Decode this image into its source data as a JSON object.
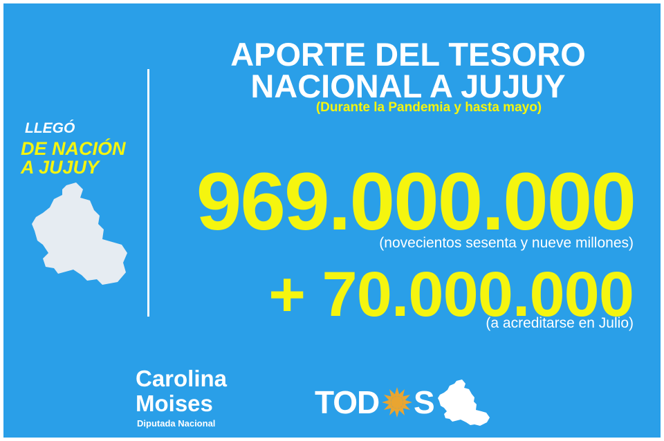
{
  "title": {
    "line1": "APORTE DEL TESORO",
    "line2": "NACIONAL A JUJUY",
    "subtitle": "(Durante la Pandemia y hasta mayo)"
  },
  "badge": {
    "line1": "LLEGÓ",
    "line2": "DE NACIÓN",
    "line3": "A JUJUY"
  },
  "amounts": {
    "main": "969.000.000",
    "main_words": "(novecientos sesenta y nueve millones)",
    "extra": "+ 70.000.000",
    "extra_note": "(a acreditarse en Julio)"
  },
  "author": {
    "first_name": "Carolina",
    "last_name": "Moises",
    "role": "Diputada Nacional"
  },
  "logo": {
    "text_left": "TOD",
    "text_right": "S"
  },
  "colors": {
    "background": "#2a9fe8",
    "highlight": "#f5f50f",
    "text": "#ffffff",
    "map_fill": "#e6ecf2",
    "sun": "#e9a531"
  },
  "icons": {
    "province_map": "jujuy-map-icon",
    "sun": "sun-icon"
  }
}
